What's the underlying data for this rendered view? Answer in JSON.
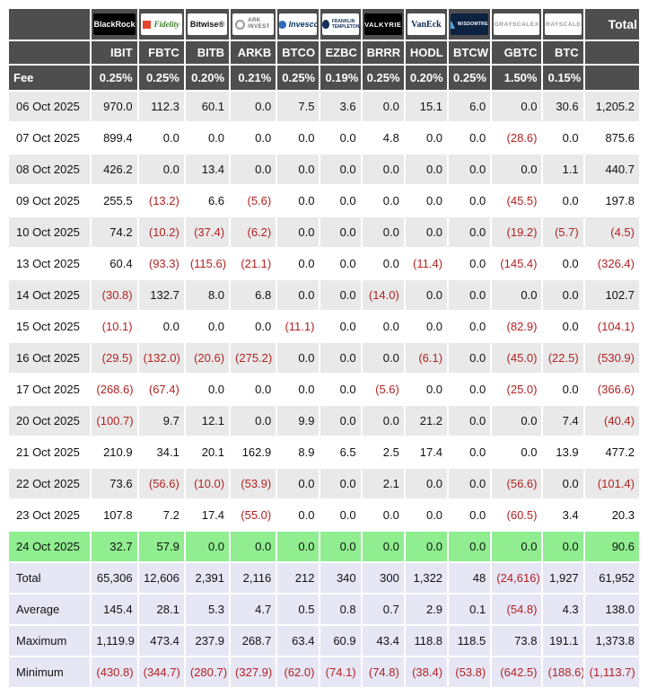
{
  "labels": {
    "fee": "Fee",
    "total": "Total"
  },
  "theme": {
    "header_bg": "#4e4e4e",
    "header_fg": "#ffffff",
    "row_bg": "#ffffff",
    "row_alt_bg": "#e9e9e9",
    "highlight_bg": "#90ee90",
    "summary_bg": "#e6e6f5",
    "negative_color": "#b22222",
    "text_color": "#111111"
  },
  "chart_data": {
    "type": "table",
    "providers": [
      {
        "name": "blackrock",
        "label": "BlackRock",
        "chip_bg": "#000000",
        "label_color": "#ffffff",
        "icon": "none",
        "icon_color": ""
      },
      {
        "name": "fidelity",
        "label": "Fidelity",
        "chip_bg": "#ffffff",
        "label_color": "#417d24",
        "icon": "square",
        "icon_color": "#e8442c"
      },
      {
        "name": "bitwise",
        "label": "Bitwise®",
        "chip_bg": "#ffffff",
        "label_color": "#111111",
        "icon": "none",
        "icon_color": ""
      },
      {
        "name": "ark-invest",
        "label": "ARK INVEST",
        "chip_bg": "#ffffff",
        "label_color": "#6b6b6b",
        "icon": "circle",
        "icon_color": "#9a9a9a"
      },
      {
        "name": "invesco",
        "label": "Invesco",
        "chip_bg": "#ffffff",
        "label_color": "#0b3862",
        "icon": "ball",
        "icon_color": "#2a6ebb"
      },
      {
        "name": "franklin-templeton",
        "label": "FRANKLIN TEMPLETON",
        "chip_bg": "#ffffff",
        "label_color": "#13315c",
        "icon": "head",
        "icon_color": "#13315c"
      },
      {
        "name": "valkyrie",
        "label": "VALKYRIE",
        "chip_bg": "#000000",
        "label_color": "#ffffff",
        "icon": "none",
        "icon_color": ""
      },
      {
        "name": "vaneck",
        "label": "VanEck",
        "chip_bg": "#ffffff",
        "label_color": "#0d2c54",
        "icon": "none",
        "icon_color": ""
      },
      {
        "name": "wisdomtree",
        "label": "WISDOMTREE",
        "chip_bg": "#0b2240",
        "label_color": "#ffffff",
        "icon": "prism",
        "icon_color": "#4aa3df"
      },
      {
        "name": "grayscale",
        "label": "GRAYSCALE®",
        "chip_bg": "#ffffff",
        "label_color": "#9a9a9a",
        "icon": "none",
        "icon_color": ""
      },
      {
        "name": "grayscale2",
        "label": "GRAYSCALE®",
        "chip_bg": "#ffffff",
        "label_color": "#9a9a9a",
        "icon": "none",
        "icon_color": ""
      }
    ],
    "columns": [
      "IBIT",
      "FBTC",
      "BITB",
      "ARKB",
      "BTCO",
      "EZBC",
      "BRRR",
      "HODL",
      "BTCW",
      "GBTC",
      "BTC"
    ],
    "fees": [
      "0.25%",
      "0.25%",
      "0.20%",
      "0.21%",
      "0.25%",
      "0.19%",
      "0.25%",
      "0.20%",
      "0.25%",
      "1.50%",
      "0.15%"
    ],
    "rows": [
      {
        "date": "06 Oct 2025",
        "values": [
          "970.0",
          "112.3",
          "60.1",
          "0.0",
          "7.5",
          "3.6",
          "0.0",
          "15.1",
          "6.0",
          "0.0",
          "30.6"
        ],
        "total": "1,205.2",
        "highlight": false
      },
      {
        "date": "07 Oct 2025",
        "values": [
          "899.4",
          "0.0",
          "0.0",
          "0.0",
          "0.0",
          "0.0",
          "4.8",
          "0.0",
          "0.0",
          "(28.6)",
          "0.0"
        ],
        "total": "875.6",
        "highlight": false
      },
      {
        "date": "08 Oct 2025",
        "values": [
          "426.2",
          "0.0",
          "13.4",
          "0.0",
          "0.0",
          "0.0",
          "0.0",
          "0.0",
          "0.0",
          "0.0",
          "1.1"
        ],
        "total": "440.7",
        "highlight": false
      },
      {
        "date": "09 Oct 2025",
        "values": [
          "255.5",
          "(13.2)",
          "6.6",
          "(5.6)",
          "0.0",
          "0.0",
          "0.0",
          "0.0",
          "0.0",
          "(45.5)",
          "0.0"
        ],
        "total": "197.8",
        "highlight": false
      },
      {
        "date": "10 Oct 2025",
        "values": [
          "74.2",
          "(10.2)",
          "(37.4)",
          "(6.2)",
          "0.0",
          "0.0",
          "0.0",
          "0.0",
          "0.0",
          "(19.2)",
          "(5.7)"
        ],
        "total": "(4.5)",
        "highlight": false
      },
      {
        "date": "13 Oct 2025",
        "values": [
          "60.4",
          "(93.3)",
          "(115.6)",
          "(21.1)",
          "0.0",
          "0.0",
          "0.0",
          "(11.4)",
          "0.0",
          "(145.4)",
          "0.0"
        ],
        "total": "(326.4)",
        "highlight": false
      },
      {
        "date": "14 Oct 2025",
        "values": [
          "(30.8)",
          "132.7",
          "8.0",
          "6.8",
          "0.0",
          "0.0",
          "(14.0)",
          "0.0",
          "0.0",
          "0.0",
          "0.0"
        ],
        "total": "102.7",
        "highlight": false
      },
      {
        "date": "15 Oct 2025",
        "values": [
          "(10.1)",
          "0.0",
          "0.0",
          "0.0",
          "(11.1)",
          "0.0",
          "0.0",
          "0.0",
          "0.0",
          "(82.9)",
          "0.0"
        ],
        "total": "(104.1)",
        "highlight": false
      },
      {
        "date": "16 Oct 2025",
        "values": [
          "(29.5)",
          "(132.0)",
          "(20.6)",
          "(275.2)",
          "0.0",
          "0.0",
          "0.0",
          "(6.1)",
          "0.0",
          "(45.0)",
          "(22.5)"
        ],
        "total": "(530.9)",
        "highlight": false
      },
      {
        "date": "17 Oct 2025",
        "values": [
          "(268.6)",
          "(67.4)",
          "0.0",
          "0.0",
          "0.0",
          "0.0",
          "(5.6)",
          "0.0",
          "0.0",
          "(25.0)",
          "0.0"
        ],
        "total": "(366.6)",
        "highlight": false
      },
      {
        "date": "20 Oct 2025",
        "values": [
          "(100.7)",
          "9.7",
          "12.1",
          "0.0",
          "9.9",
          "0.0",
          "0.0",
          "21.2",
          "0.0",
          "0.0",
          "7.4"
        ],
        "total": "(40.4)",
        "highlight": false
      },
      {
        "date": "21 Oct 2025",
        "values": [
          "210.9",
          "34.1",
          "20.1",
          "162.9",
          "8.9",
          "6.5",
          "2.5",
          "17.4",
          "0.0",
          "0.0",
          "13.9"
        ],
        "total": "477.2",
        "highlight": false
      },
      {
        "date": "22 Oct 2025",
        "values": [
          "73.6",
          "(56.6)",
          "(10.0)",
          "(53.9)",
          "0.0",
          "0.0",
          "2.1",
          "0.0",
          "0.0",
          "(56.6)",
          "0.0"
        ],
        "total": "(101.4)",
        "highlight": false
      },
      {
        "date": "23 Oct 2025",
        "values": [
          "107.8",
          "7.2",
          "17.4",
          "(55.0)",
          "0.0",
          "0.0",
          "0.0",
          "0.0",
          "0.0",
          "(60.5)",
          "3.4"
        ],
        "total": "20.3",
        "highlight": false
      },
      {
        "date": "24 Oct 2025",
        "values": [
          "32.7",
          "57.9",
          "0.0",
          "0.0",
          "0.0",
          "0.0",
          "0.0",
          "0.0",
          "0.0",
          "0.0",
          "0.0"
        ],
        "total": "90.6",
        "highlight": true
      }
    ],
    "summary": [
      {
        "label": "Total",
        "values": [
          "65,306",
          "12,606",
          "2,391",
          "2,116",
          "212",
          "340",
          "300",
          "1,322",
          "48",
          "(24,616)",
          "1,927"
        ],
        "total": "61,952"
      },
      {
        "label": "Average",
        "values": [
          "145.4",
          "28.1",
          "5.3",
          "4.7",
          "0.5",
          "0.8",
          "0.7",
          "2.9",
          "0.1",
          "(54.8)",
          "4.3"
        ],
        "total": "138.0"
      },
      {
        "label": "Maximum",
        "values": [
          "1,119.9",
          "473.4",
          "237.9",
          "268.7",
          "63.4",
          "60.9",
          "43.4",
          "118.8",
          "118.5",
          "73.8",
          "191.1"
        ],
        "total": "1,373.8"
      },
      {
        "label": "Minimum",
        "values": [
          "(430.8)",
          "(344.7)",
          "(280.7)",
          "(327.9)",
          "(62.0)",
          "(74.1)",
          "(74.8)",
          "(38.4)",
          "(53.8)",
          "(642.5)",
          "(188.6)"
        ],
        "total": "(1,113.7)"
      }
    ]
  }
}
